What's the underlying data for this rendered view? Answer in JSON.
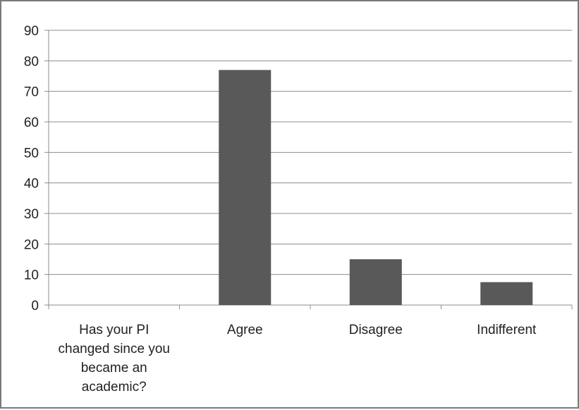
{
  "chart_data": {
    "type": "bar",
    "categories": [
      "Has your PI changed since you became an academic?",
      "Agree",
      "Disagree",
      "Indifferent"
    ],
    "category_lines": [
      [
        "Has your PI",
        "changed since you",
        "became an",
        "academic?"
      ],
      [
        "Agree"
      ],
      [
        "Disagree"
      ],
      [
        "Indifferent"
      ]
    ],
    "values": [
      0,
      77,
      15,
      7.5
    ],
    "ylim": [
      0,
      90
    ],
    "yticks": [
      0,
      10,
      20,
      30,
      40,
      50,
      60,
      70,
      80,
      90
    ],
    "grid": true,
    "bar_color": "#595959",
    "grid_color": "#8c8c8c",
    "axis_color": "#8c8c8c"
  }
}
